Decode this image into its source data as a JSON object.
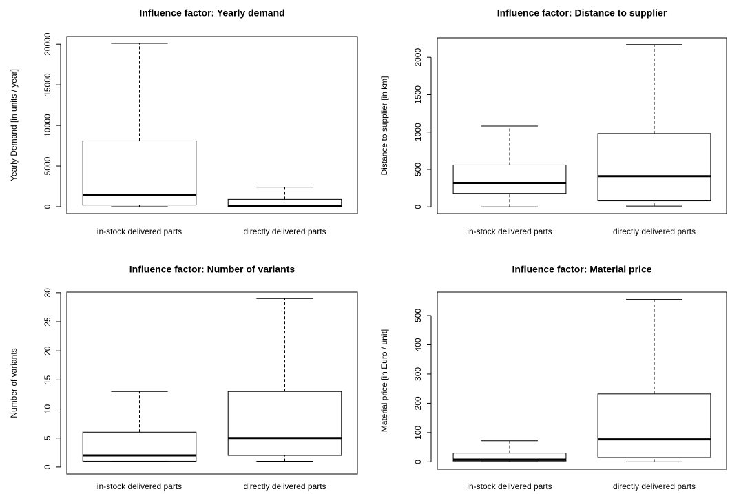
{
  "chart_data": [
    {
      "type": "box",
      "title": "Influence factor: Yearly demand",
      "y_label": "Yearly Demand [in units / year]",
      "categories": [
        "in-stock delivered parts",
        "directly delivered parts"
      ],
      "min": [
        0,
        0
      ],
      "q1": [
        200,
        0
      ],
      "median": [
        1400,
        100
      ],
      "q3": [
        8100,
        900
      ],
      "max": [
        20100,
        2400
      ],
      "ylim": [
        -850,
        20950
      ],
      "yticks": [
        0,
        5000,
        10000,
        15000,
        20000
      ]
    },
    {
      "type": "box",
      "title": "Influence factor: Distance to supplier",
      "y_label": "Distance to supplier [in km]",
      "categories": [
        "in-stock delivered parts",
        "directly delivered parts"
      ],
      "min": [
        0,
        10
      ],
      "q1": [
        180,
        80
      ],
      "median": [
        320,
        410
      ],
      "q3": [
        560,
        980
      ],
      "max": [
        1080,
        2170
      ],
      "ylim": [
        -90,
        2260
      ],
      "yticks": [
        0,
        500,
        1000,
        1500,
        2000
      ]
    },
    {
      "type": "box",
      "title": "Influence factor: Number of variants",
      "y_label": "Number of variants",
      "categories": [
        "in-stock delivered parts",
        "directly delivered parts"
      ],
      "min": [
        1,
        1
      ],
      "q1": [
        1,
        2
      ],
      "median": [
        2,
        5
      ],
      "q3": [
        6,
        13
      ],
      "max": [
        13,
        29
      ],
      "ylim": [
        -1.2,
        30.1
      ],
      "yticks": [
        0,
        5,
        10,
        15,
        20,
        25,
        30
      ]
    },
    {
      "type": "box",
      "title": "Influence factor: Material price",
      "y_label": "Material price [in Euro / unit]",
      "categories": [
        "in-stock delivered parts",
        "directly delivered parts"
      ],
      "min": [
        0,
        0
      ],
      "q1": [
        3,
        15
      ],
      "median": [
        8,
        77
      ],
      "q3": [
        30,
        232
      ],
      "max": [
        72,
        555
      ],
      "ylim": [
        -25,
        580
      ],
      "yticks": [
        0,
        100,
        200,
        300,
        400,
        500
      ]
    }
  ]
}
